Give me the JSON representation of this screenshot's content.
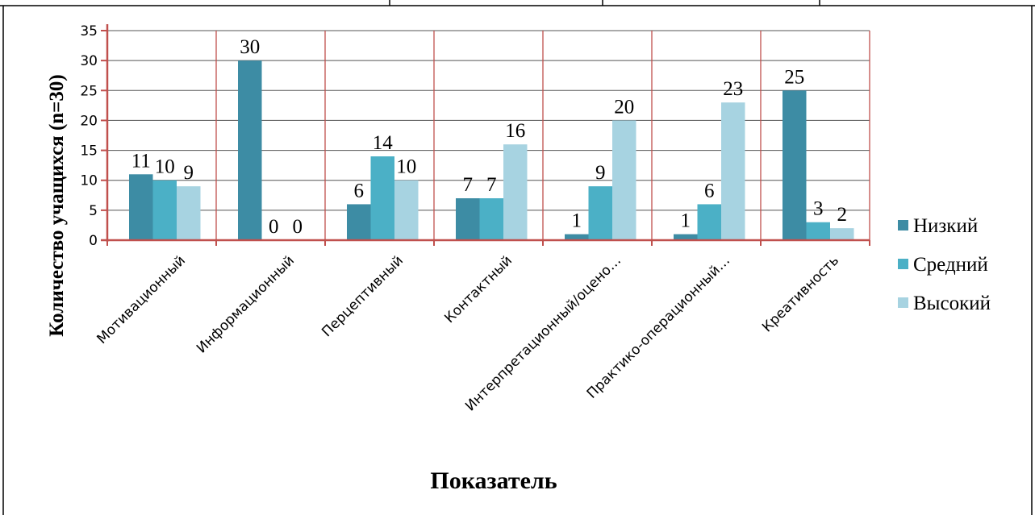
{
  "chart_data": {
    "type": "bar",
    "title": "",
    "xlabel": "Показатель",
    "ylabel": "Количество учащихся (n=30)",
    "ylim": [
      0,
      35
    ],
    "yticks": [
      0,
      5,
      10,
      15,
      20,
      25,
      30,
      35
    ],
    "grid": true,
    "legend_position": "right",
    "categories": [
      "Мотивационный",
      "Информационный",
      "Перцептивный",
      "Контактный",
      "Интерпретационный/оцено…",
      "Практико-операционный…",
      "Креативность"
    ],
    "series": [
      {
        "name": "Низкий",
        "color": "#3d8ca4",
        "values": [
          11,
          30,
          6,
          7,
          1,
          1,
          25
        ]
      },
      {
        "name": "Средний",
        "color": "#4bb0c6",
        "values": [
          10,
          0,
          14,
          7,
          9,
          6,
          3
        ]
      },
      {
        "name": "Высокий",
        "color": "#a7d3e1",
        "values": [
          9,
          0,
          10,
          16,
          20,
          23,
          2
        ]
      }
    ],
    "colors": {
      "grid": "#c0504d",
      "axis": "#c0504d"
    }
  }
}
